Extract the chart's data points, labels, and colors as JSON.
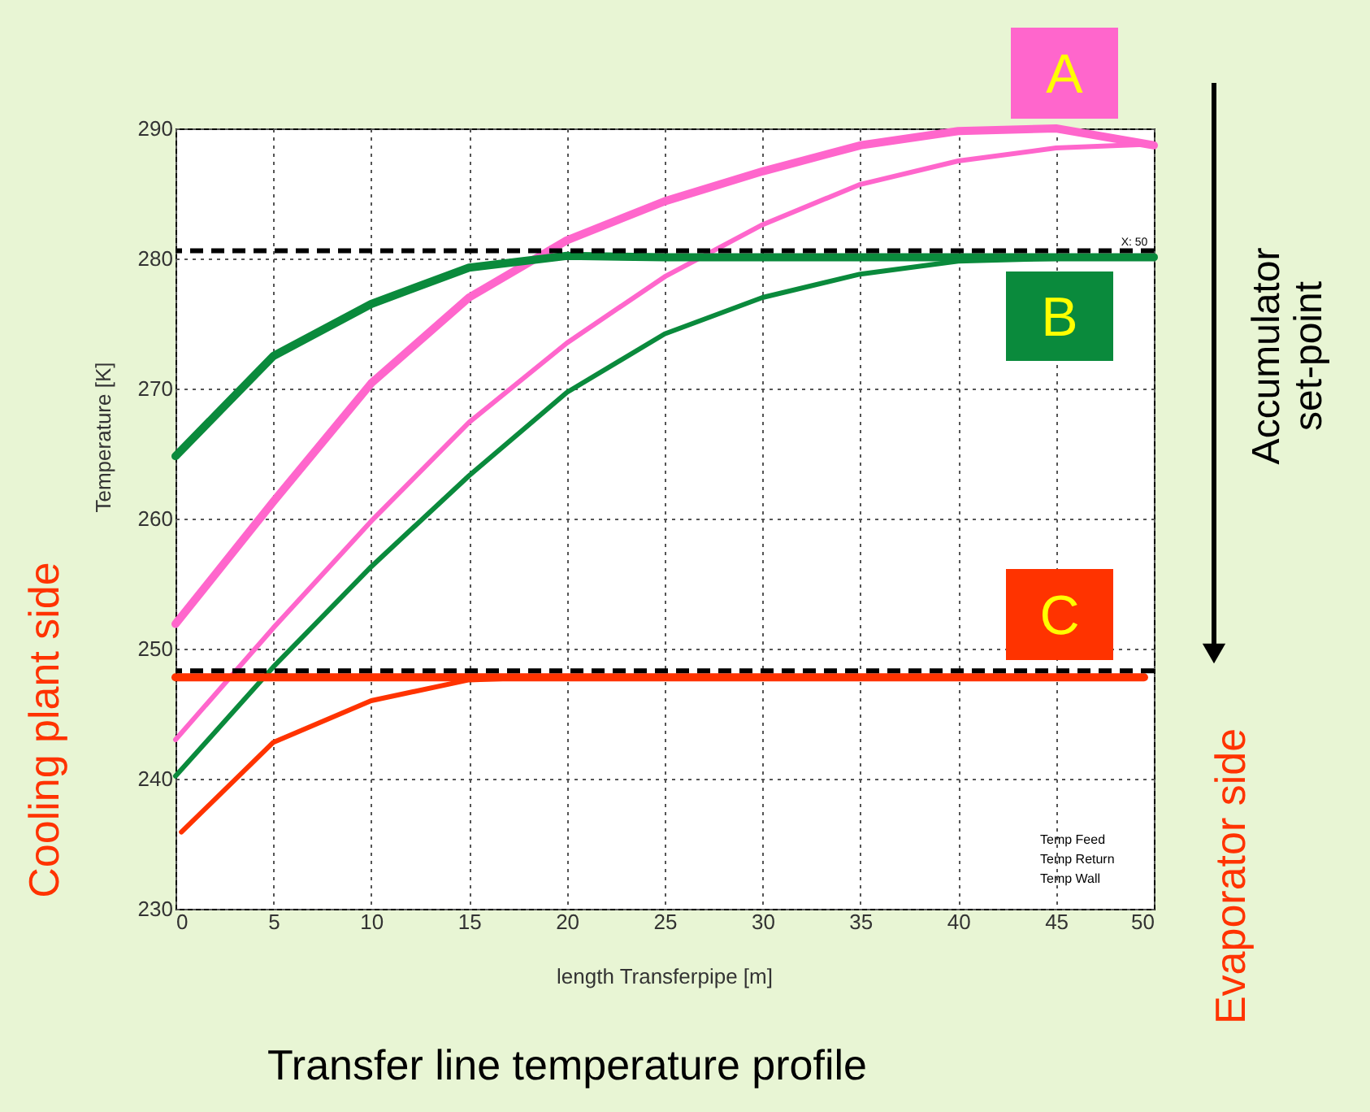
{
  "chart_data": {
    "type": "line",
    "title": "Transfer line temperature profile",
    "xlabel": "length Transferpipe [m]",
    "ylabel": "Temperature [K]",
    "xlim": [
      0,
      50
    ],
    "xticks": [
      0,
      5,
      10,
      15,
      20,
      25,
      30,
      35,
      40,
      45,
      50
    ],
    "ylim": [
      230,
      290
    ],
    "yticks": [
      230,
      240,
      250,
      260,
      270,
      280,
      290
    ],
    "grid": true,
    "line_style": "solid",
    "marker": "none",
    "series": [
      {
        "color": "#ff66cc",
        "x": [
          0,
          5,
          10,
          15,
          20,
          25,
          30,
          35,
          40,
          45,
          50
        ],
        "values": [
          251.9,
          261.3,
          270.4,
          277.0,
          281.4,
          284.4,
          286.7,
          288.7,
          289.8,
          290.0,
          288.7
        ]
      },
      {
        "color": "#ff66cc",
        "x": [
          0,
          5,
          10,
          15,
          20,
          25,
          30,
          35,
          40,
          45,
          50
        ],
        "values": [
          243.0,
          251.6,
          259.8,
          267.4,
          273.5,
          278.6,
          282.6,
          285.7,
          287.5,
          288.5,
          288.8
        ]
      },
      {
        "color": "#0a8a3c",
        "x": [
          0,
          5,
          10,
          15,
          20,
          25,
          30,
          35,
          40,
          45,
          50
        ],
        "values": [
          264.8,
          272.5,
          276.5,
          279.3,
          280.2,
          280.1,
          280.1,
          280.1,
          280.1,
          280.1,
          280.1
        ]
      },
      {
        "color": "#0a8a3c",
        "x": [
          0,
          5,
          10,
          15,
          20,
          25,
          30,
          35,
          40,
          45,
          50
        ],
        "values": [
          240.2,
          248.6,
          256.3,
          263.3,
          269.7,
          274.2,
          277.0,
          278.8,
          279.8,
          280.0,
          280.0
        ]
      },
      {
        "color": "#ff3300",
        "x": [
          0,
          10,
          20,
          30,
          40,
          49.5
        ],
        "values": [
          247.8,
          247.8,
          247.8,
          247.8,
          247.8,
          247.8
        ]
      },
      {
        "color": "#ff3300",
        "x": [
          0.3,
          5,
          10,
          15,
          17
        ],
        "values": [
          235.9,
          242.8,
          246.0,
          247.6,
          247.7
        ]
      }
    ],
    "ref_lines": [
      {
        "axis": "y",
        "value": 280.6,
        "line_style": "dashed",
        "color": "#000000"
      },
      {
        "axis": "y",
        "value": 248.3,
        "line_style": "dashed",
        "color": "#000000"
      }
    ],
    "annotations": [
      "A",
      "B",
      "C",
      "Accumulator set-point",
      "Cooling plant side",
      "Evaporator side",
      "X: 50",
      "Temp Feed",
      "Temp Return",
      "Temp Wall"
    ]
  }
}
